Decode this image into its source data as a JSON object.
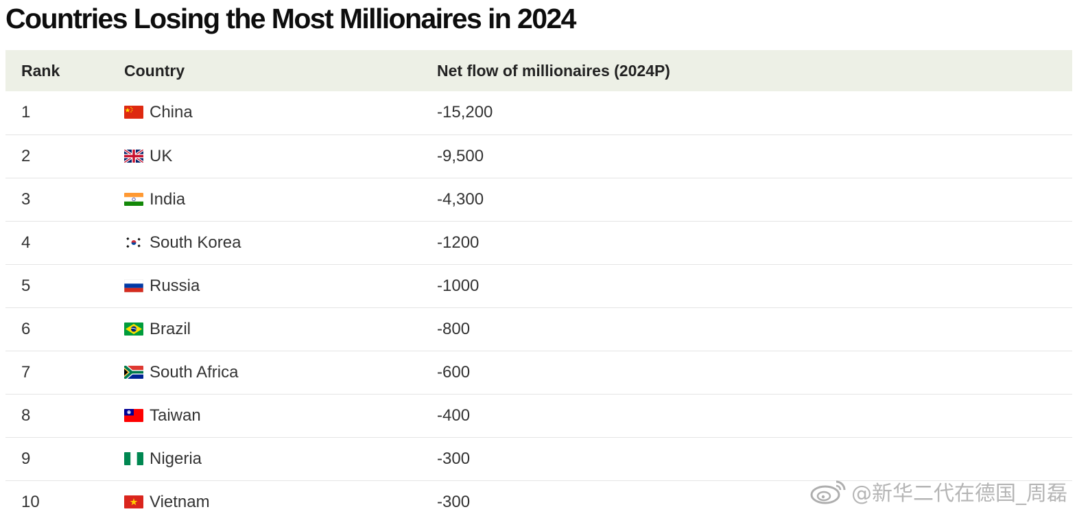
{
  "title": "Countries Losing the Most Millionaires in 2024",
  "table": {
    "headers": {
      "rank": "Rank",
      "country": "Country",
      "flow": "Net flow of millionaires (2024P)"
    },
    "rows": [
      {
        "rank": "1",
        "country": "China",
        "flag": "china-flag-icon",
        "flow": "-15,200"
      },
      {
        "rank": "2",
        "country": "UK",
        "flag": "uk-flag-icon",
        "flow": "-9,500"
      },
      {
        "rank": "3",
        "country": "India",
        "flag": "india-flag-icon",
        "flow": "-4,300"
      },
      {
        "rank": "4",
        "country": "South Korea",
        "flag": "south-korea-flag-icon",
        "flow": "-1200"
      },
      {
        "rank": "5",
        "country": "Russia",
        "flag": "russia-flag-icon",
        "flow": "-1000"
      },
      {
        "rank": "6",
        "country": "Brazil",
        "flag": "brazil-flag-icon",
        "flow": "-800"
      },
      {
        "rank": "7",
        "country": "South Africa",
        "flag": "south-africa-flag-icon",
        "flow": "-600"
      },
      {
        "rank": "8",
        "country": "Taiwan",
        "flag": "taiwan-flag-icon",
        "flow": "-400"
      },
      {
        "rank": "9",
        "country": "Nigeria",
        "flag": "nigeria-flag-icon",
        "flow": "-300"
      },
      {
        "rank": "10",
        "country": "Vietnam",
        "flag": "vietnam-flag-icon",
        "flow": "-300"
      }
    ]
  },
  "watermark": {
    "text": "@新华二代在德国_周磊",
    "icon": "weibo-logo-icon"
  },
  "colors": {
    "header_bg": "#edf0e6",
    "row_divider": "#e4e4e4",
    "title": "#0d0d0d"
  }
}
